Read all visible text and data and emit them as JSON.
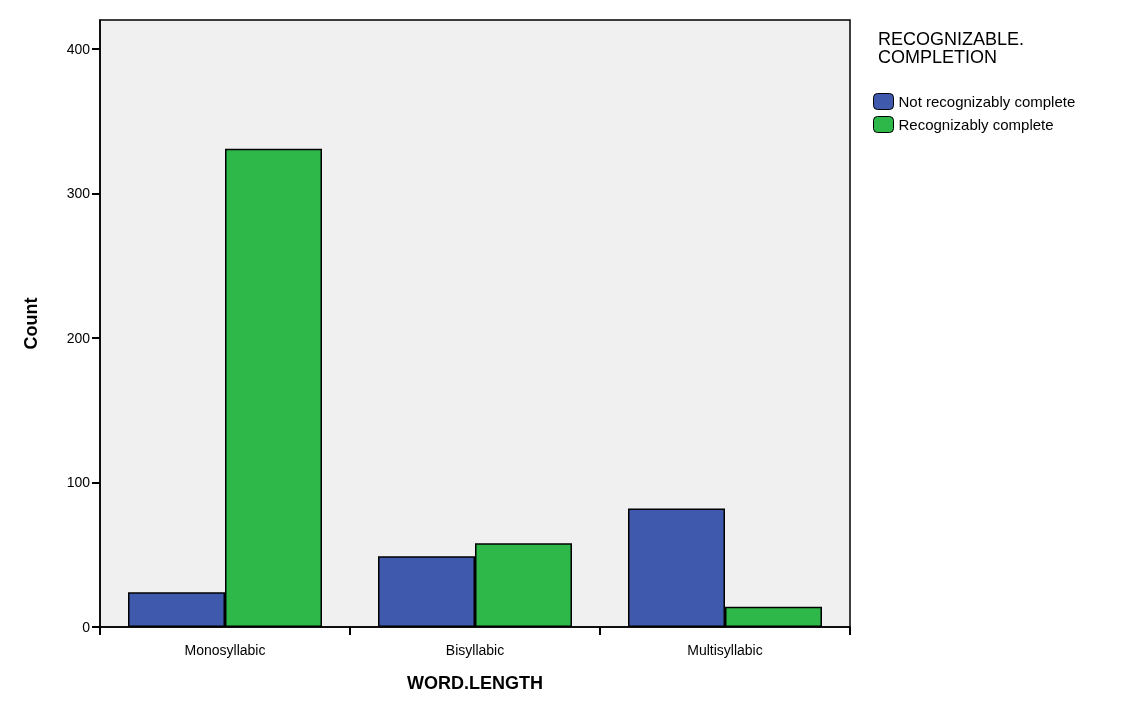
{
  "chart_data": {
    "type": "bar",
    "xlabel": "WORD.LENGTH",
    "ylabel": "Count",
    "legend_title": "RECOGNIZABLE.\nCOMPLETION",
    "categories": [
      "Monosyllabic",
      "Bisyllabic",
      "Multisyllabic"
    ],
    "series": [
      {
        "name": "Not recognizably complete",
        "color": "#3f59ad",
        "values": [
          24,
          49,
          82
        ]
      },
      {
        "name": "Recognizably complete",
        "color": "#2fb84a",
        "values": [
          331,
          58,
          14
        ]
      }
    ],
    "ylim": [
      0,
      420
    ],
    "yticks": [
      0,
      100,
      200,
      300,
      400
    ],
    "grid": false,
    "legend": "top right"
  }
}
